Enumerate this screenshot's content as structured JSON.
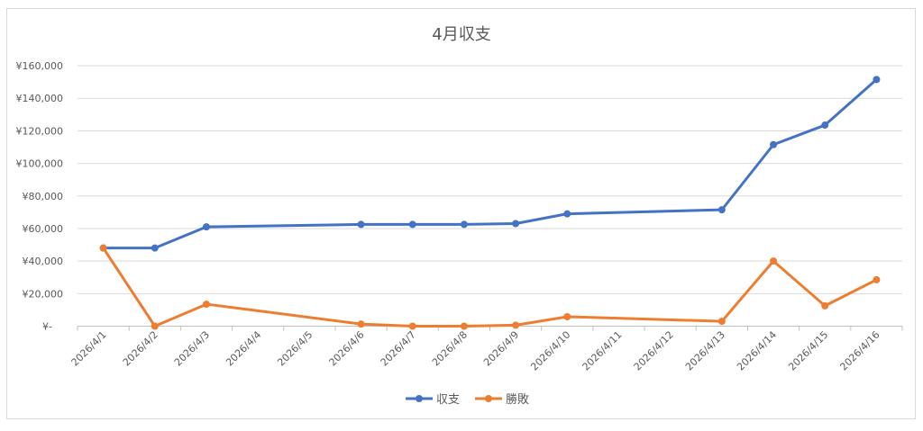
{
  "chart_data": {
    "type": "line",
    "title": "4月収支",
    "xlabel": "",
    "ylabel": "",
    "ylim": [
      0,
      160000
    ],
    "yticks": [
      0,
      20000,
      40000,
      60000,
      80000,
      100000,
      120000,
      140000,
      160000
    ],
    "ytick_labels": [
      "¥-",
      "¥20,000",
      "¥40,000",
      "¥60,000",
      "¥80,000",
      "¥100,000",
      "¥120,000",
      "¥140,000",
      "¥160,000"
    ],
    "grid": true,
    "legend_position": "bottom",
    "categories": [
      "2026/4/1",
      "2026/4/2",
      "2026/4/3",
      "2026/4/4",
      "2026/4/5",
      "2026/4/6",
      "2026/4/7",
      "2026/4/8",
      "2026/4/9",
      "2026/4/10",
      "2026/4/11",
      "2026/4/12",
      "2026/4/13",
      "2026/4/14",
      "2026/4/15",
      "2026/4/16"
    ],
    "series": [
      {
        "name": "収支",
        "color": "#4472c4",
        "values": [
          48000,
          48000,
          61000,
          null,
          null,
          62500,
          62500,
          62500,
          63000,
          69000,
          null,
          null,
          71500,
          111500,
          123500,
          151500
        ]
      },
      {
        "name": "勝敗",
        "color": "#ed7d31",
        "values": [
          48000,
          0,
          13500,
          null,
          null,
          1300,
          0,
          0,
          600,
          5800,
          null,
          null,
          3000,
          40000,
          12500,
          28500
        ]
      }
    ]
  }
}
